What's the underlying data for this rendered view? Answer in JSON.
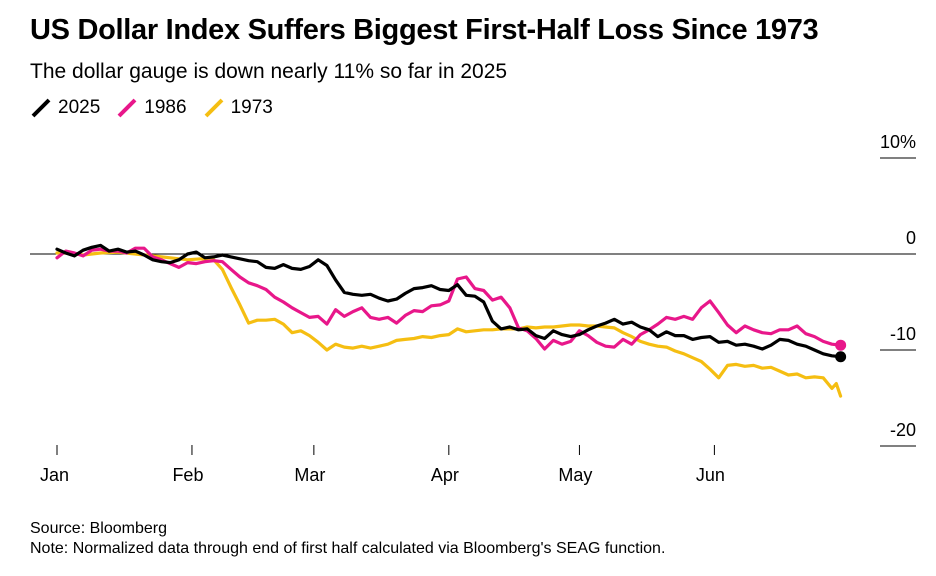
{
  "title": "US Dollar Index Suffers Biggest First-Half Loss Since 1973",
  "subtitle": "The dollar gauge is down nearly 11% so far in 2025",
  "source": "Source: Bloomberg",
  "note": "Note: Normalized data through end of first half calculated via Bloomberg's SEAG function.",
  "chart_data": {
    "type": "line",
    "x_tick_labels": [
      "Jan",
      "Feb",
      "Mar",
      "Apr",
      "May",
      "Jun"
    ],
    "x_tick_days": [
      0,
      31,
      59,
      90,
      120,
      151
    ],
    "y_tick_labels": [
      "10%",
      "0",
      "-10",
      "-20"
    ],
    "y_ticks": [
      10,
      0,
      -10,
      -20
    ],
    "ylim": [
      -20,
      10
    ],
    "xlim_days": [
      0,
      181
    ],
    "grid": false,
    "legend_position": "top-left",
    "series": [
      {
        "name": "2025",
        "color": "#000000",
        "endpoint_marker": true,
        "points": [
          [
            0,
            0.5
          ],
          [
            2,
            0.1
          ],
          [
            4,
            -0.2
          ],
          [
            6,
            0.4
          ],
          [
            8,
            0.7
          ],
          [
            10,
            0.9
          ],
          [
            12,
            0.3
          ],
          [
            14,
            0.5
          ],
          [
            16,
            0.2
          ],
          [
            18,
            0.3
          ],
          [
            20,
            -0.1
          ],
          [
            22,
            -0.6
          ],
          [
            24,
            -0.8
          ],
          [
            26,
            -0.9
          ],
          [
            28,
            -0.6
          ],
          [
            30,
            0.0
          ],
          [
            32,
            0.2
          ],
          [
            34,
            -0.4
          ],
          [
            36,
            -0.3
          ],
          [
            38,
            -0.1
          ],
          [
            40,
            -0.3
          ],
          [
            42,
            -0.5
          ],
          [
            44,
            -0.7
          ],
          [
            46,
            -0.8
          ],
          [
            48,
            -1.4
          ],
          [
            50,
            -1.5
          ],
          [
            52,
            -1.1
          ],
          [
            54,
            -1.5
          ],
          [
            56,
            -1.6
          ],
          [
            58,
            -1.3
          ],
          [
            60,
            -0.6
          ],
          [
            62,
            -1.2
          ],
          [
            64,
            -2.7
          ],
          [
            66,
            -4.0
          ],
          [
            68,
            -4.2
          ],
          [
            70,
            -4.3
          ],
          [
            72,
            -4.2
          ],
          [
            74,
            -4.6
          ],
          [
            76,
            -4.9
          ],
          [
            78,
            -4.7
          ],
          [
            80,
            -4.1
          ],
          [
            82,
            -3.6
          ],
          [
            84,
            -3.5
          ],
          [
            86,
            -3.3
          ],
          [
            88,
            -3.7
          ],
          [
            90,
            -3.8
          ],
          [
            92,
            -3.2
          ],
          [
            94,
            -4.3
          ],
          [
            96,
            -4.4
          ],
          [
            98,
            -5.0
          ],
          [
            100,
            -7.0
          ],
          [
            102,
            -7.8
          ],
          [
            104,
            -7.6
          ],
          [
            106,
            -7.9
          ],
          [
            108,
            -7.8
          ],
          [
            110,
            -8.5
          ],
          [
            112,
            -8.8
          ],
          [
            114,
            -8.0
          ],
          [
            116,
            -8.4
          ],
          [
            118,
            -8.6
          ],
          [
            120,
            -8.4
          ],
          [
            122,
            -7.9
          ],
          [
            124,
            -7.5
          ],
          [
            126,
            -7.2
          ],
          [
            128,
            -6.8
          ],
          [
            130,
            -7.3
          ],
          [
            132,
            -7.1
          ],
          [
            134,
            -7.6
          ],
          [
            136,
            -7.9
          ],
          [
            138,
            -8.6
          ],
          [
            140,
            -8.1
          ],
          [
            142,
            -8.5
          ],
          [
            144,
            -8.5
          ],
          [
            146,
            -8.9
          ],
          [
            148,
            -8.7
          ],
          [
            150,
            -8.6
          ],
          [
            152,
            -9.2
          ],
          [
            154,
            -9.1
          ],
          [
            156,
            -9.5
          ],
          [
            158,
            -9.4
          ],
          [
            160,
            -9.6
          ],
          [
            162,
            -9.9
          ],
          [
            164,
            -9.5
          ],
          [
            166,
            -8.9
          ],
          [
            168,
            -9.0
          ],
          [
            170,
            -9.4
          ],
          [
            172,
            -9.6
          ],
          [
            174,
            -10.0
          ],
          [
            176,
            -10.4
          ],
          [
            178,
            -10.6
          ],
          [
            180,
            -10.7
          ]
        ]
      },
      {
        "name": "1986",
        "color": "#e8178a",
        "endpoint_marker": true,
        "points": [
          [
            0,
            -0.4
          ],
          [
            2,
            0.3
          ],
          [
            4,
            0.1
          ],
          [
            6,
            -0.2
          ],
          [
            8,
            0.4
          ],
          [
            10,
            0.5
          ],
          [
            12,
            0.3
          ],
          [
            14,
            0.3
          ],
          [
            16,
            0.1
          ],
          [
            18,
            0.6
          ],
          [
            20,
            0.6
          ],
          [
            22,
            -0.3
          ],
          [
            24,
            -0.6
          ],
          [
            26,
            -1.0
          ],
          [
            28,
            -1.4
          ],
          [
            30,
            -0.9
          ],
          [
            32,
            -1.0
          ],
          [
            34,
            -0.8
          ],
          [
            36,
            -0.7
          ],
          [
            38,
            -0.8
          ],
          [
            40,
            -1.6
          ],
          [
            42,
            -2.4
          ],
          [
            44,
            -3.0
          ],
          [
            46,
            -3.3
          ],
          [
            48,
            -3.7
          ],
          [
            50,
            -4.5
          ],
          [
            52,
            -5.0
          ],
          [
            54,
            -5.6
          ],
          [
            56,
            -6.1
          ],
          [
            58,
            -6.6
          ],
          [
            60,
            -6.5
          ],
          [
            62,
            -7.3
          ],
          [
            64,
            -5.8
          ],
          [
            66,
            -6.5
          ],
          [
            68,
            -6.0
          ],
          [
            70,
            -5.6
          ],
          [
            72,
            -6.6
          ],
          [
            74,
            -6.8
          ],
          [
            76,
            -6.6
          ],
          [
            78,
            -7.2
          ],
          [
            80,
            -6.4
          ],
          [
            82,
            -5.9
          ],
          [
            84,
            -6.0
          ],
          [
            86,
            -5.4
          ],
          [
            88,
            -5.3
          ],
          [
            90,
            -4.9
          ],
          [
            92,
            -2.6
          ],
          [
            94,
            -2.4
          ],
          [
            96,
            -3.6
          ],
          [
            98,
            -3.8
          ],
          [
            100,
            -4.8
          ],
          [
            102,
            -4.5
          ],
          [
            104,
            -5.6
          ],
          [
            106,
            -7.7
          ],
          [
            108,
            -8.0
          ],
          [
            110,
            -8.8
          ],
          [
            112,
            -9.9
          ],
          [
            114,
            -9.0
          ],
          [
            116,
            -9.4
          ],
          [
            118,
            -9.1
          ],
          [
            120,
            -8.0
          ],
          [
            122,
            -8.5
          ],
          [
            124,
            -9.2
          ],
          [
            126,
            -9.6
          ],
          [
            128,
            -9.7
          ],
          [
            130,
            -8.9
          ],
          [
            132,
            -9.4
          ],
          [
            134,
            -8.4
          ],
          [
            136,
            -7.9
          ],
          [
            138,
            -7.3
          ],
          [
            140,
            -6.6
          ],
          [
            142,
            -6.8
          ],
          [
            144,
            -6.5
          ],
          [
            146,
            -6.8
          ],
          [
            148,
            -5.6
          ],
          [
            150,
            -4.9
          ],
          [
            152,
            -6.1
          ],
          [
            154,
            -7.4
          ],
          [
            156,
            -8.2
          ],
          [
            158,
            -7.5
          ],
          [
            160,
            -7.9
          ],
          [
            162,
            -8.2
          ],
          [
            164,
            -8.3
          ],
          [
            166,
            -7.9
          ],
          [
            168,
            -7.9
          ],
          [
            170,
            -7.5
          ],
          [
            172,
            -8.3
          ],
          [
            174,
            -8.6
          ],
          [
            176,
            -9.1
          ],
          [
            178,
            -9.4
          ],
          [
            180,
            -9.5
          ]
        ]
      },
      {
        "name": "1973",
        "color": "#f5be12",
        "endpoint_marker": false,
        "points": [
          [
            0,
            0.1
          ],
          [
            3,
            0.1
          ],
          [
            6,
            -0.1
          ],
          [
            10,
            0.1
          ],
          [
            14,
            0.2
          ],
          [
            18,
            0.0
          ],
          [
            22,
            -0.2
          ],
          [
            26,
            -0.4
          ],
          [
            30,
            -0.6
          ],
          [
            33,
            -0.5
          ],
          [
            36,
            -0.6
          ],
          [
            38,
            -1.6
          ],
          [
            40,
            -3.5
          ],
          [
            42,
            -5.3
          ],
          [
            44,
            -7.2
          ],
          [
            46,
            -6.9
          ],
          [
            48,
            -6.9
          ],
          [
            50,
            -6.8
          ],
          [
            52,
            -7.3
          ],
          [
            54,
            -8.2
          ],
          [
            56,
            -8.0
          ],
          [
            58,
            -8.5
          ],
          [
            60,
            -9.2
          ],
          [
            62,
            -10.0
          ],
          [
            64,
            -9.4
          ],
          [
            66,
            -9.7
          ],
          [
            68,
            -9.8
          ],
          [
            70,
            -9.6
          ],
          [
            72,
            -9.8
          ],
          [
            74,
            -9.6
          ],
          [
            76,
            -9.4
          ],
          [
            78,
            -9.0
          ],
          [
            80,
            -8.9
          ],
          [
            82,
            -8.8
          ],
          [
            84,
            -8.6
          ],
          [
            86,
            -8.7
          ],
          [
            88,
            -8.5
          ],
          [
            90,
            -8.4
          ],
          [
            92,
            -7.8
          ],
          [
            94,
            -8.1
          ],
          [
            96,
            -8.0
          ],
          [
            98,
            -7.9
          ],
          [
            100,
            -7.9
          ],
          [
            102,
            -7.8
          ],
          [
            104,
            -7.8
          ],
          [
            106,
            -7.8
          ],
          [
            108,
            -7.6
          ],
          [
            110,
            -7.7
          ],
          [
            112,
            -7.6
          ],
          [
            114,
            -7.6
          ],
          [
            116,
            -7.5
          ],
          [
            118,
            -7.4
          ],
          [
            120,
            -7.4
          ],
          [
            122,
            -7.5
          ],
          [
            124,
            -7.5
          ],
          [
            126,
            -7.6
          ],
          [
            128,
            -7.7
          ],
          [
            130,
            -8.2
          ],
          [
            132,
            -8.6
          ],
          [
            134,
            -9.1
          ],
          [
            136,
            -9.4
          ],
          [
            138,
            -9.6
          ],
          [
            140,
            -9.7
          ],
          [
            142,
            -10.1
          ],
          [
            144,
            -10.4
          ],
          [
            146,
            -10.8
          ],
          [
            148,
            -11.2
          ],
          [
            150,
            -12.0
          ],
          [
            152,
            -12.9
          ],
          [
            154,
            -11.6
          ],
          [
            156,
            -11.5
          ],
          [
            158,
            -11.7
          ],
          [
            160,
            -11.6
          ],
          [
            162,
            -11.9
          ],
          [
            164,
            -11.8
          ],
          [
            166,
            -12.2
          ],
          [
            168,
            -12.6
          ],
          [
            170,
            -12.5
          ],
          [
            172,
            -12.9
          ],
          [
            174,
            -12.8
          ],
          [
            176,
            -12.9
          ],
          [
            178,
            -14.0
          ],
          [
            179,
            -13.5
          ],
          [
            180,
            -14.8
          ]
        ]
      }
    ]
  }
}
